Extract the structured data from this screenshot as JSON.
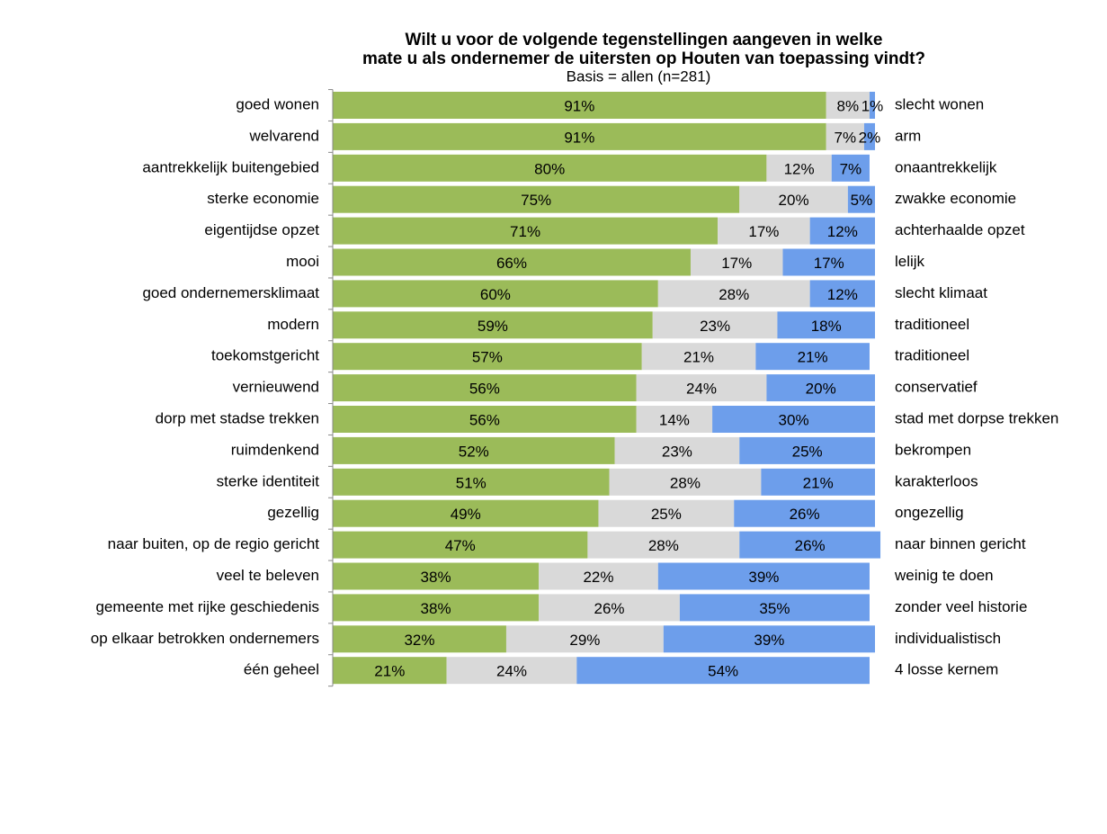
{
  "chart_data": {
    "type": "stacked-bar-horizontal",
    "title": [
      "Wilt u voor de volgende  tegenstellingen aangeven in welke",
      "mate u als ondernemer de uitersten op Houten van toepassing vindt?"
    ],
    "subtitle": "Basis = allen (n=281)",
    "categories": [
      "goed wonen",
      "welvarend",
      "aantrekkelijk buitengebied",
      "sterke economie",
      "eigentijdse opzet",
      "mooi",
      "goed ondernemersklimaat",
      "modern",
      "toekomstgericht",
      "vernieuwend",
      "dorp met stadse trekken",
      "ruimdenkend",
      "sterke identiteit",
      "gezellig",
      "naar buiten, op de regio gericht",
      "veel te beleven",
      "gemeente met rijke geschiedenis",
      "op elkaar betrokken ondernemers",
      "één geheel"
    ],
    "right_labels": [
      "slecht wonen",
      "arm",
      "onaantrekkelijk",
      "zwakke economie",
      "achterhaalde  opzet",
      "lelijk",
      "slecht klimaat",
      "traditioneel",
      "traditioneel",
      "conservatief",
      "stad met dorpse trekken",
      "bekrompen",
      "karakterloos",
      "ongezellig",
      "naar binnen gericht",
      "weinig te doen",
      "zonder veel  historie",
      "individualistisch",
      "4 losse kernem"
    ],
    "xlim": [
      0,
      100
    ],
    "series": [
      {
        "color": "#9bbb59",
        "values": [
          91,
          91,
          80,
          75,
          71,
          66,
          60,
          59,
          57,
          56,
          56,
          52,
          51,
          49,
          47,
          38,
          38,
          32,
          21
        ],
        "value_labels": [
          "91%",
          "91%",
          "80%",
          "75%",
          "71%",
          "66%",
          "60%",
          "59%",
          "57%",
          "56%",
          "56%",
          "52%",
          "51%",
          "49%",
          "47%",
          "38%",
          "38%",
          "32%",
          "21%"
        ]
      },
      {
        "color": "#d9d9d9",
        "values": [
          8,
          7,
          12,
          20,
          17,
          17,
          28,
          23,
          21,
          24,
          14,
          23,
          28,
          25,
          28,
          22,
          26,
          29,
          24
        ],
        "value_labels": [
          "8%",
          "7%",
          "12%",
          "20%",
          "17%",
          "17%",
          "28%",
          "23%",
          "21%",
          "24%",
          "14%",
          "23%",
          "28%",
          "25%",
          "28%",
          "22%",
          "26%",
          "29%",
          "24%"
        ]
      },
      {
        "color": "#6d9eeb",
        "values": [
          1,
          2,
          7,
          5,
          12,
          17,
          12,
          18,
          21,
          20,
          30,
          25,
          21,
          26,
          26,
          39,
          35,
          39,
          54
        ],
        "value_labels": [
          "1%",
          "2%",
          "7%",
          "5%",
          "12%",
          "17%",
          "12%",
          "18%",
          "21%",
          "20%",
          "30%",
          "25%",
          "21%",
          "26%",
          "26%",
          "39%",
          "35%",
          "39%",
          "54%"
        ]
      }
    ]
  }
}
